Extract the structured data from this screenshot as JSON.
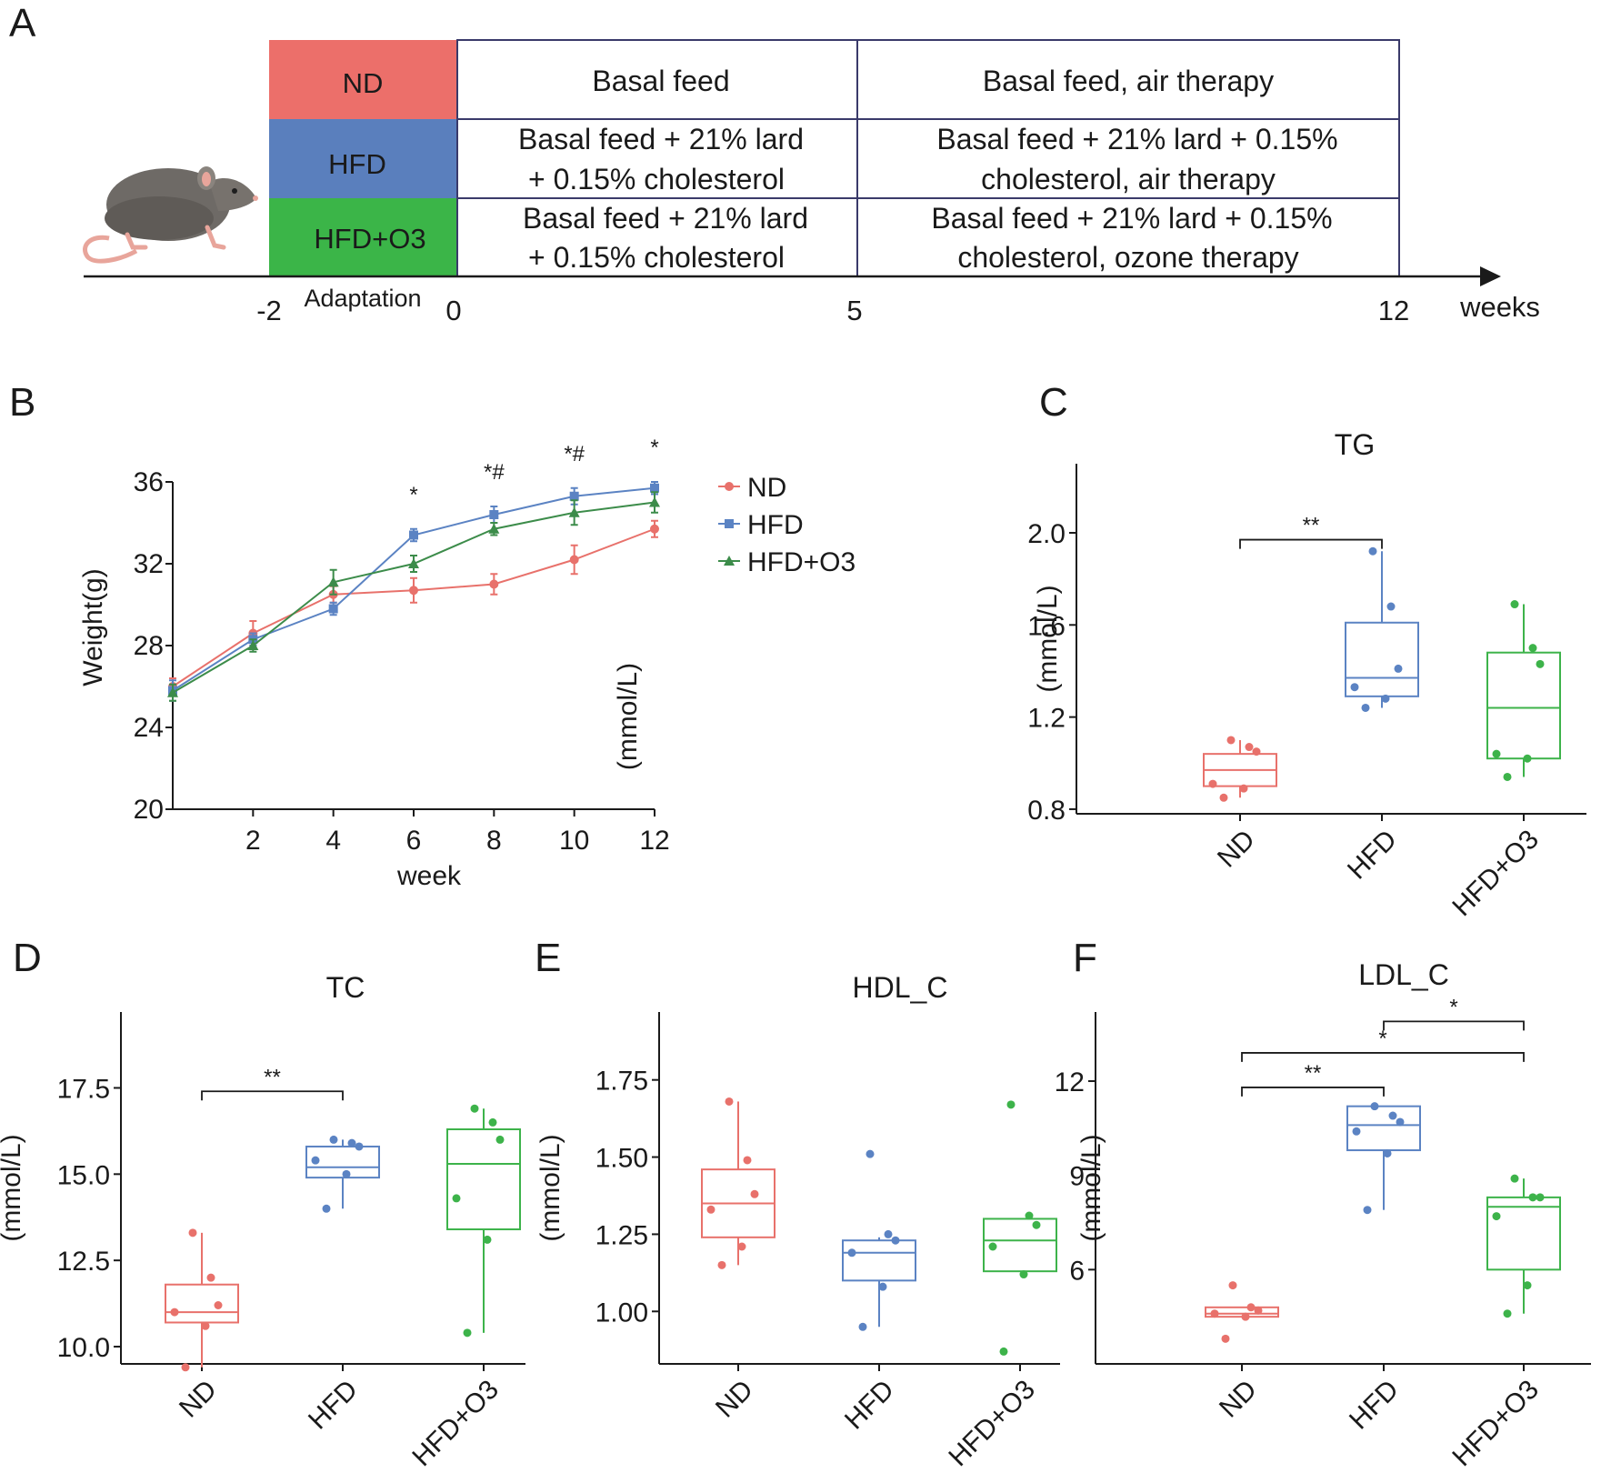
{
  "colors": {
    "nd": "#e8716b",
    "hfd": "#5b83c3",
    "hfdo3": "#3db34a",
    "nd_block": "#ec6f6a",
    "hfd_block": "#5a7fbd",
    "hfdo3_block": "#3bb548",
    "table_border": "#3a3a6a"
  },
  "panelA": {
    "letter": "A",
    "groups": [
      "ND",
      "HFD",
      "HFD+O3"
    ],
    "rows": [
      {
        "group": "ND",
        "cell1": [
          "Basal feed"
        ],
        "cell2": [
          "Basal feed, air therapy"
        ]
      },
      {
        "group": "HFD",
        "cell1": [
          "Basal feed + 21% lard",
          "+ 0.15% cholesterol"
        ],
        "cell2": [
          "Basal feed + 21% lard + 0.15%",
          "cholesterol, air therapy"
        ]
      },
      {
        "group": "HFD+O3",
        "cell1": [
          "Basal feed + 21% lard",
          "+ 0.15% cholesterol"
        ],
        "cell2": [
          "Basal feed + 21% lard + 0.15%",
          "cholesterol, ozone therapy"
        ]
      }
    ],
    "timeline": {
      "labels": [
        "-2",
        "0",
        "5",
        "12"
      ],
      "adaptation_label": "Adaptation",
      "unit_label": "weeks"
    },
    "icon": "rat-icon"
  },
  "chart_data": [
    {
      "panel": "B",
      "type": "line",
      "title": "",
      "xlabel": "week",
      "ylabel": "Weight(g)",
      "stray_label": "(mmol/L)",
      "xlim": [
        0,
        12
      ],
      "ylim": [
        20,
        36
      ],
      "xticks": [
        2,
        4,
        6,
        8,
        10,
        12
      ],
      "yticks": [
        20,
        24,
        28,
        32,
        36
      ],
      "x": [
        0,
        2,
        4,
        6,
        8,
        10,
        12
      ],
      "series": [
        {
          "name": "ND",
          "color": "#e8716b",
          "marker": "circle",
          "values": [
            26.0,
            28.6,
            30.5,
            30.7,
            31.0,
            32.2,
            33.7
          ],
          "errors": [
            0.4,
            0.6,
            0.4,
            0.6,
            0.5,
            0.7,
            0.4
          ]
        },
        {
          "name": "HFD",
          "color": "#5b83c3",
          "marker": "square",
          "values": [
            25.8,
            28.3,
            29.8,
            33.4,
            34.4,
            35.3,
            35.7
          ],
          "errors": [
            0.5,
            0.3,
            0.3,
            0.3,
            0.4,
            0.4,
            0.3
          ]
        },
        {
          "name": "HFD+O3",
          "color": "#3c8c4a",
          "marker": "triangle",
          "values": [
            25.7,
            28.0,
            31.1,
            32.0,
            33.7,
            34.5,
            35.0
          ],
          "errors": [
            0.4,
            0.3,
            0.6,
            0.4,
            0.3,
            0.6,
            0.5
          ]
        }
      ],
      "annotations": [
        {
          "x": 6,
          "text": "*"
        },
        {
          "x": 8,
          "text": "*#"
        },
        {
          "x": 10,
          "text": "*#"
        },
        {
          "x": 12,
          "text": "*"
        }
      ],
      "legend": "right"
    },
    {
      "panel": "C",
      "type": "box",
      "title": "TG",
      "ylabel": "(mmol/L)",
      "ylim": [
        0.78,
        2.3
      ],
      "yticks": [
        0.8,
        1.2,
        1.6,
        2.0
      ],
      "tick_labels": [
        "0.8",
        "1.2",
        "1.6",
        "2.0"
      ],
      "categories": [
        "ND",
        "HFD",
        "HFD+O3"
      ],
      "boxes": [
        {
          "name": "ND",
          "min": 0.85,
          "q1": 0.9,
          "median": 0.97,
          "q3": 1.04,
          "max": 1.1,
          "points": [
            1.1,
            1.07,
            1.05,
            0.91,
            0.89,
            0.85
          ]
        },
        {
          "name": "HFD",
          "min": 1.24,
          "q1": 1.29,
          "median": 1.37,
          "q3": 1.61,
          "max": 1.92,
          "points": [
            1.92,
            1.68,
            1.41,
            1.33,
            1.28,
            1.24
          ]
        },
        {
          "name": "HFD+O3",
          "min": 0.94,
          "q1": 1.02,
          "median": 1.24,
          "q3": 1.48,
          "max": 1.69,
          "points": [
            1.69,
            1.5,
            1.43,
            1.04,
            1.02,
            0.94
          ]
        }
      ],
      "brackets": [
        {
          "from": 0,
          "to": 1,
          "y": 1.97,
          "text": "**"
        }
      ]
    },
    {
      "panel": "D",
      "type": "box",
      "title": "TC",
      "ylabel": "(mmol/L)",
      "ylim": [
        9.5,
        19.7
      ],
      "yticks": [
        10.0,
        12.5,
        15.0,
        17.5
      ],
      "tick_labels": [
        "10.0",
        "12.5",
        "15.0",
        "17.5"
      ],
      "categories": [
        "ND",
        "HFD",
        "HFD+O3"
      ],
      "boxes": [
        {
          "name": "ND",
          "min": 9.4,
          "q1": 10.7,
          "median": 11.0,
          "q3": 11.8,
          "max": 13.3,
          "points": [
            13.3,
            12.0,
            11.2,
            11.0,
            10.6,
            9.4
          ]
        },
        {
          "name": "HFD",
          "min": 14.0,
          "q1": 14.9,
          "median": 15.2,
          "q3": 15.8,
          "max": 16.0,
          "points": [
            16.0,
            15.9,
            15.8,
            15.4,
            15.0,
            14.0
          ]
        },
        {
          "name": "HFD+O3",
          "min": 10.4,
          "q1": 13.4,
          "median": 15.3,
          "q3": 16.3,
          "max": 16.9,
          "points": [
            16.9,
            16.5,
            16.0,
            14.3,
            13.1,
            10.4
          ]
        }
      ],
      "brackets": [
        {
          "from": 0,
          "to": 1,
          "y": 17.4,
          "text": "**"
        }
      ]
    },
    {
      "panel": "E",
      "type": "box",
      "title": "HDL_C",
      "ylabel": "(mmol/L)",
      "ylim": [
        0.83,
        1.97
      ],
      "yticks": [
        1.0,
        1.25,
        1.5,
        1.75
      ],
      "tick_labels": [
        "1.00",
        "1.25",
        "1.50",
        "1.75"
      ],
      "categories": [
        "ND",
        "HFD",
        "HFD+O3"
      ],
      "boxes": [
        {
          "name": "ND",
          "min": 1.15,
          "q1": 1.24,
          "median": 1.35,
          "q3": 1.46,
          "max": 1.68,
          "points": [
            1.68,
            1.49,
            1.38,
            1.33,
            1.21,
            1.15
          ]
        },
        {
          "name": "HFD",
          "min": 0.95,
          "q1": 1.1,
          "median": 1.19,
          "q3": 1.23,
          "max": 1.24,
          "points": [
            1.51,
            1.25,
            1.23,
            1.19,
            1.08,
            0.95
          ]
        },
        {
          "name": "HFD+O3",
          "min": 1.13,
          "q1": 1.13,
          "median": 1.23,
          "q3": 1.3,
          "max": 1.3,
          "points": [
            1.67,
            1.31,
            1.28,
            1.21,
            1.12,
            0.87
          ]
        }
      ],
      "brackets": []
    },
    {
      "panel": "F",
      "type": "box",
      "title": "LDL_C",
      "ylabel": "(mmol/L)",
      "ylim": [
        3.0,
        14.2
      ],
      "yticks": [
        6,
        9,
        12
      ],
      "tick_labels": [
        "6",
        "9",
        "12"
      ],
      "categories": [
        "ND",
        "HFD",
        "HFD+O3"
      ],
      "boxes": [
        {
          "name": "ND",
          "min": 4.5,
          "q1": 4.5,
          "median": 4.6,
          "q3": 4.8,
          "max": 4.8,
          "points": [
            5.5,
            4.8,
            4.7,
            4.6,
            4.5,
            3.8
          ]
        },
        {
          "name": "HFD",
          "min": 7.9,
          "q1": 9.8,
          "median": 10.6,
          "q3": 11.2,
          "max": 11.2,
          "points": [
            11.2,
            10.9,
            10.7,
            10.4,
            9.7,
            7.9
          ]
        },
        {
          "name": "HFD+O3",
          "min": 4.6,
          "q1": 6.0,
          "median": 8.0,
          "q3": 8.3,
          "max": 8.9,
          "points": [
            8.9,
            8.3,
            8.3,
            7.7,
            5.5,
            4.6
          ]
        }
      ],
      "brackets": [
        {
          "from": 0,
          "to": 1,
          "y": 11.8,
          "text": "**"
        },
        {
          "from": 0,
          "to": 2,
          "y": 12.9,
          "text": "*"
        },
        {
          "from": 1,
          "to": 2,
          "y": 13.9,
          "text": "*"
        }
      ]
    }
  ]
}
